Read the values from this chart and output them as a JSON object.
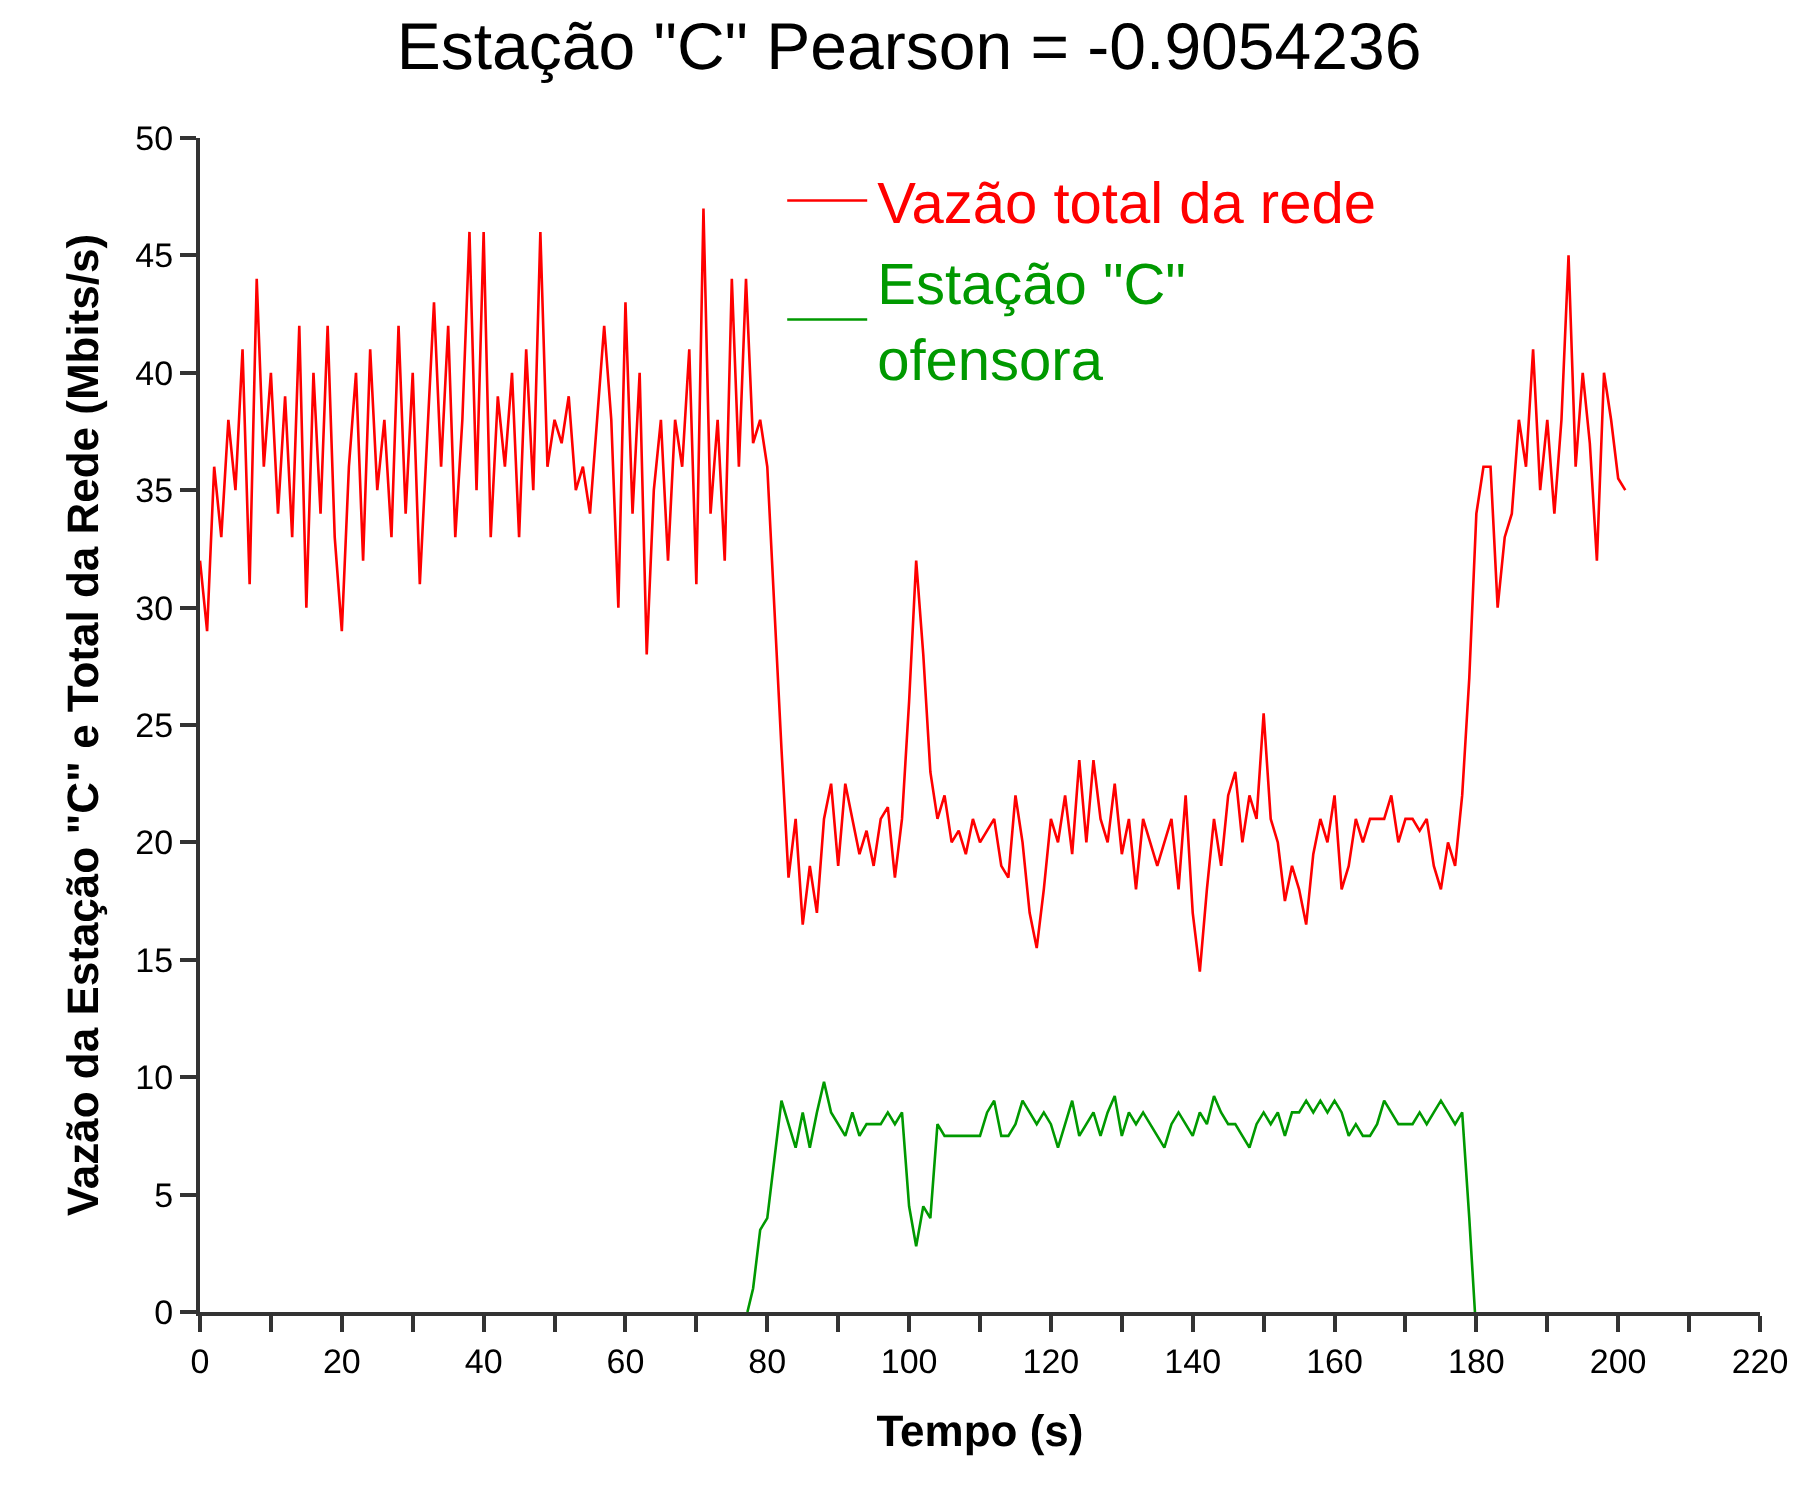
{
  "chart_data": {
    "type": "line",
    "title": "Estação \"C\" Pearson = -0.9054236",
    "xlabel": "Tempo (s)",
    "ylabel": "Vazão da Estação \"C\" e Total da Rede (Mbits/s)",
    "series": [
      {
        "name": "Vazão total da rede",
        "color": "#ff0000",
        "x": [
          0,
          1,
          2,
          3,
          4,
          5,
          6,
          7,
          8,
          9,
          10,
          11,
          12,
          13,
          14,
          15,
          16,
          17,
          18,
          19,
          20,
          21,
          22,
          23,
          24,
          25,
          26,
          27,
          28,
          29,
          30,
          31,
          32,
          33,
          34,
          35,
          36,
          37,
          38,
          39,
          40,
          41,
          42,
          43,
          44,
          45,
          46,
          47,
          48,
          49,
          50,
          51,
          52,
          53,
          54,
          55,
          56,
          57,
          58,
          59,
          60,
          61,
          62,
          63,
          64,
          65,
          66,
          67,
          68,
          69,
          70,
          71,
          72,
          73,
          74,
          75,
          76,
          77,
          78,
          79,
          80,
          81,
          82,
          83,
          84,
          85,
          86,
          87,
          88,
          89,
          90,
          91,
          92,
          93,
          94,
          95,
          96,
          97,
          98,
          99,
          100,
          101,
          102,
          103,
          104,
          105,
          106,
          107,
          108,
          109,
          110,
          111,
          112,
          113,
          114,
          115,
          116,
          117,
          118,
          119,
          120,
          121,
          122,
          123,
          124,
          125,
          126,
          127,
          128,
          129,
          130,
          131,
          132,
          133,
          134,
          135,
          136,
          137,
          138,
          139,
          140,
          141,
          142,
          143,
          144,
          145,
          146,
          147,
          148,
          149,
          150,
          151,
          152,
          153,
          154,
          155,
          156,
          157,
          158,
          159,
          160,
          161,
          162,
          163,
          164,
          165,
          166,
          167,
          168,
          169,
          170,
          171,
          172,
          173,
          174,
          175,
          176,
          177,
          178,
          179,
          180,
          181,
          182,
          183,
          184,
          185,
          186,
          187,
          188,
          189,
          190,
          191,
          192,
          193,
          194,
          195,
          196,
          197,
          198,
          199,
          200,
          201
        ],
        "values": [
          32,
          29,
          36,
          33,
          38,
          35,
          41,
          31,
          44,
          36,
          40,
          34,
          39,
          33,
          42,
          30,
          40,
          34,
          42,
          33,
          29,
          36,
          40,
          32,
          41,
          35,
          38,
          33,
          42,
          34,
          40,
          31,
          37,
          43,
          36,
          42,
          33,
          38,
          46,
          35,
          46,
          33,
          39,
          36,
          40,
          33,
          41,
          35,
          46,
          36,
          38,
          37,
          39,
          35,
          36,
          34,
          38,
          42,
          38,
          30,
          43,
          34,
          40,
          28,
          35,
          38,
          32,
          38,
          36,
          41,
          31,
          47,
          34,
          38,
          32,
          44,
          36,
          44,
          37,
          38,
          36,
          30,
          24,
          18.5,
          21,
          16.5,
          19,
          17,
          21,
          22.5,
          19,
          22.5,
          21,
          19.5,
          20.5,
          19,
          21,
          21.5,
          18.5,
          21,
          26,
          32,
          28,
          23,
          21,
          22,
          20,
          20.5,
          19.5,
          21,
          20,
          20.5,
          21,
          19,
          18.5,
          22,
          20,
          17,
          15.5,
          18,
          21,
          20,
          22,
          19.5,
          23.5,
          20,
          23.5,
          21,
          20,
          22.5,
          19.5,
          21,
          18,
          21,
          20,
          19,
          20,
          21,
          18,
          22,
          17,
          14.5,
          18,
          21,
          19,
          22,
          23,
          20,
          22,
          21,
          25.5,
          21,
          20,
          17.5,
          19,
          18,
          16.5,
          19.5,
          21,
          20,
          22,
          18,
          19,
          21,
          20,
          21,
          21,
          21,
          22,
          20,
          21,
          21,
          20.5,
          21,
          19,
          18,
          20,
          19,
          22,
          27,
          34,
          36,
          36,
          30,
          33,
          34,
          38,
          36,
          41,
          35,
          38,
          34,
          38,
          45,
          36,
          40,
          37,
          32,
          40,
          38,
          35.5,
          35
        ]
      },
      {
        "name": "Estação \"C\" ofensora",
        "color": "#009900",
        "x": [
          77.2,
          78,
          79,
          80,
          81,
          82,
          83,
          84,
          85,
          86,
          87,
          88,
          89,
          90,
          91,
          92,
          93,
          94,
          95,
          96,
          97,
          98,
          99,
          100,
          101,
          102,
          103,
          104,
          105,
          106,
          107,
          108,
          109,
          110,
          111,
          112,
          113,
          114,
          115,
          116,
          117,
          118,
          119,
          120,
          121,
          122,
          123,
          124,
          125,
          126,
          127,
          128,
          129,
          130,
          131,
          132,
          133,
          134,
          135,
          136,
          137,
          138,
          139,
          140,
          141,
          142,
          143,
          144,
          145,
          146,
          147,
          148,
          149,
          150,
          151,
          152,
          153,
          154,
          155,
          156,
          157,
          158,
          159,
          160,
          161,
          162,
          163,
          164,
          165,
          166,
          167,
          168,
          169,
          170,
          171,
          172,
          173,
          174,
          175,
          176,
          177,
          178,
          179,
          179.8
        ],
        "values": [
          0,
          1,
          3.5,
          4,
          6.5,
          9,
          8,
          7,
          8.5,
          7,
          8.5,
          9.8,
          8.5,
          8,
          7.5,
          8.5,
          7.5,
          8,
          8,
          8,
          8.5,
          8,
          8.5,
          4.5,
          2.8,
          4.5,
          4,
          8,
          7.5,
          7.5,
          7.5,
          7.5,
          7.5,
          7.5,
          8.5,
          9,
          7.5,
          7.5,
          8,
          9,
          8.5,
          8,
          8.5,
          8,
          7,
          8,
          9,
          7.5,
          8,
          8.5,
          7.5,
          8.5,
          9.2,
          7.5,
          8.5,
          8,
          8.5,
          8,
          7.5,
          7,
          8,
          8.5,
          8,
          7.5,
          8.5,
          8,
          9.2,
          8.5,
          8,
          8,
          7.5,
          7,
          8,
          8.5,
          8,
          8.5,
          7.5,
          8.5,
          8.5,
          9,
          8.5,
          9,
          8.5,
          9,
          8.5,
          7.5,
          8,
          7.5,
          7.5,
          8,
          9,
          8.5,
          8,
          8,
          8,
          8.5,
          8,
          8.5,
          9,
          8.5,
          8,
          8.5,
          4,
          0
        ]
      }
    ],
    "xlim": [
      0,
      220
    ],
    "xticks": [
      0,
      {
        "value": 10,
        "label": null
      },
      20,
      {
        "value": 30,
        "label": null
      },
      40,
      {
        "value": 50,
        "label": null
      },
      60,
      {
        "value": 70,
        "label": null
      },
      80,
      {
        "value": 90,
        "label": null
      },
      100,
      {
        "value": 110,
        "label": null
      },
      120,
      {
        "value": 130,
        "label": null
      },
      140,
      {
        "value": 150,
        "label": null
      },
      160,
      {
        "value": 170,
        "label": null
      },
      180,
      {
        "value": 190,
        "label": null
      },
      200,
      {
        "value": 210,
        "label": null
      },
      220
    ],
    "ylim": [
      0,
      50
    ],
    "yticks": [
      0,
      5,
      10,
      15,
      20,
      25,
      30,
      35,
      40,
      45,
      50
    ],
    "grid": false,
    "legend": "top",
    "marker": "none",
    "line_style": "solid"
  }
}
